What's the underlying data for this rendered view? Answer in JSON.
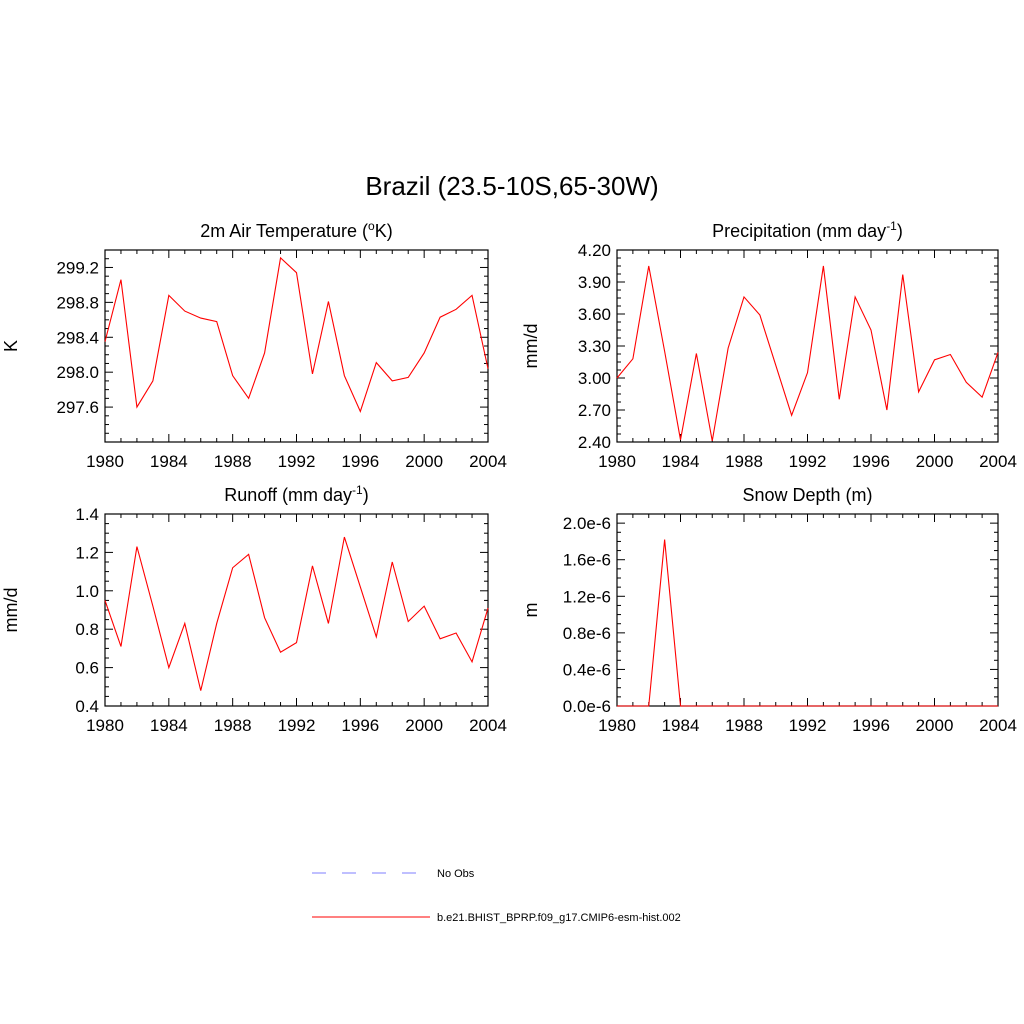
{
  "figure": {
    "title": "Brazil (23.5-10S,65-30W)"
  },
  "colors": {
    "model_line": "#ff0000",
    "obs_line": "#9999ff",
    "axes": "#000000",
    "background": "#ffffff"
  },
  "legend": {
    "entries": [
      {
        "label": "No Obs",
        "style": "dashed",
        "color": "#9999ff"
      },
      {
        "label": "b.e21.BHIST_BPRP.f09_g17.CMIP6-esm-hist.002",
        "style": "solid",
        "color": "#ff0000"
      }
    ]
  },
  "chart_data": [
    {
      "type": "line",
      "title_main": "2m Air Temperature (",
      "title_sup": "o",
      "title_end": "K)",
      "ylabel": "K",
      "xlim": [
        1980,
        2004
      ],
      "ylim": [
        297.2,
        299.4
      ],
      "xticks": [
        1980,
        1984,
        1988,
        1992,
        1996,
        2000,
        2004
      ],
      "xtick_labels": [
        "1980",
        "1984",
        "1988",
        "1992",
        "1996",
        "2000",
        "2004"
      ],
      "yticks": [
        297.6,
        298.0,
        298.4,
        298.8,
        299.2
      ],
      "ytick_labels": [
        "297.6",
        "298.0",
        "298.4",
        "298.8",
        "299.2"
      ],
      "x": [
        1980,
        1981,
        1982,
        1983,
        1984,
        1985,
        1986,
        1987,
        1988,
        1989,
        1990,
        1991,
        1992,
        1993,
        1994,
        1995,
        1996,
        1997,
        1998,
        1999,
        2000,
        2001,
        2002,
        2003,
        2004
      ],
      "series": [
        {
          "name": "b.e21.BHIST_BPRP.f09_g17.CMIP6-esm-hist.002",
          "values": [
            298.35,
            299.06,
            297.6,
            297.9,
            298.88,
            298.7,
            298.62,
            298.58,
            297.96,
            297.7,
            298.22,
            299.31,
            299.14,
            297.98,
            298.81,
            297.96,
            297.55,
            298.11,
            297.9,
            297.94,
            298.22,
            298.63,
            298.72,
            298.88,
            298.04
          ]
        }
      ]
    },
    {
      "type": "line",
      "title_main": "Precipitation (mm day",
      "title_sup": "-1",
      "title_end": ")",
      "ylabel": "mm/d",
      "xlim": [
        1980,
        2004
      ],
      "ylim": [
        2.4,
        4.2
      ],
      "xticks": [
        1980,
        1984,
        1988,
        1992,
        1996,
        2000,
        2004
      ],
      "xtick_labels": [
        "1980",
        "1984",
        "1988",
        "1992",
        "1996",
        "2000",
        "2004"
      ],
      "yticks": [
        2.4,
        2.7,
        3.0,
        3.3,
        3.6,
        3.9,
        4.2
      ],
      "ytick_labels": [
        "2.40",
        "2.70",
        "3.00",
        "3.30",
        "3.60",
        "3.90",
        "4.20"
      ],
      "x": [
        1980,
        1981,
        1982,
        1983,
        1984,
        1985,
        1986,
        1987,
        1988,
        1989,
        1990,
        1991,
        1992,
        1993,
        1994,
        1995,
        1996,
        1997,
        1998,
        1999,
        2000,
        2001,
        2002,
        2003,
        2004
      ],
      "series": [
        {
          "name": "b.e21.BHIST_BPRP.f09_g17.CMIP6-esm-hist.002",
          "values": [
            3.0,
            3.18,
            4.05,
            3.25,
            2.42,
            3.23,
            2.41,
            3.28,
            3.76,
            3.59,
            3.12,
            2.65,
            3.05,
            4.05,
            2.8,
            3.76,
            3.45,
            2.7,
            3.97,
            2.87,
            3.17,
            3.22,
            2.96,
            2.82,
            3.24
          ]
        }
      ]
    },
    {
      "type": "line",
      "title_main": "Runoff (mm day",
      "title_sup": "-1",
      "title_end": ")",
      "ylabel": "mm/d",
      "xlim": [
        1980,
        2004
      ],
      "ylim": [
        0.4,
        1.4
      ],
      "xticks": [
        1980,
        1984,
        1988,
        1992,
        1996,
        2000,
        2004
      ],
      "xtick_labels": [
        "1980",
        "1984",
        "1988",
        "1992",
        "1996",
        "2000",
        "2004"
      ],
      "yticks": [
        0.4,
        0.6,
        0.8,
        1.0,
        1.2,
        1.4
      ],
      "ytick_labels": [
        "0.4",
        "0.6",
        "0.8",
        "1.0",
        "1.2",
        "1.4"
      ],
      "x": [
        1980,
        1981,
        1982,
        1983,
        1984,
        1985,
        1986,
        1987,
        1988,
        1989,
        1990,
        1991,
        1992,
        1993,
        1994,
        1995,
        1996,
        1997,
        1998,
        1999,
        2000,
        2001,
        2002,
        2003,
        2004
      ],
      "series": [
        {
          "name": "b.e21.BHIST_BPRP.f09_g17.CMIP6-esm-hist.002",
          "values": [
            0.95,
            0.71,
            1.23,
            0.92,
            0.6,
            0.83,
            0.48,
            0.83,
            1.12,
            1.19,
            0.86,
            0.68,
            0.73,
            1.13,
            0.83,
            1.28,
            1.02,
            0.76,
            1.15,
            0.84,
            0.92,
            0.75,
            0.78,
            0.63,
            0.91
          ]
        }
      ]
    },
    {
      "type": "line",
      "title_main": "Snow Depth (m)",
      "title_sup": "",
      "title_end": "",
      "ylabel": "m",
      "xlim": [
        1980,
        2004
      ],
      "ylim": [
        0,
        2.1e-06
      ],
      "xticks": [
        1980,
        1984,
        1988,
        1992,
        1996,
        2000,
        2004
      ],
      "xtick_labels": [
        "1980",
        "1984",
        "1988",
        "1992",
        "1996",
        "2000",
        "2004"
      ],
      "yticks": [
        0,
        4e-07,
        8e-07,
        1.2e-06,
        1.6e-06,
        2e-06
      ],
      "ytick_labels": [
        "0.0e-6",
        "0.4e-6",
        "0.8e-6",
        "1.2e-6",
        "1.6e-6",
        "2.0e-6"
      ],
      "x": [
        1980,
        1981,
        1982,
        1983,
        1984,
        1985,
        1986,
        1987,
        1988,
        1989,
        1990,
        1991,
        1992,
        1993,
        1994,
        1995,
        1996,
        1997,
        1998,
        1999,
        2000,
        2001,
        2002,
        2003,
        2004
      ],
      "series": [
        {
          "name": "b.e21.BHIST_BPRP.f09_g17.CMIP6-esm-hist.002",
          "values": [
            0,
            0,
            0,
            1.82e-06,
            0,
            0,
            0,
            0,
            0,
            0,
            0,
            0,
            0,
            0,
            0,
            0,
            0,
            0,
            0,
            0,
            0,
            0,
            0,
            0,
            0
          ]
        }
      ]
    }
  ]
}
